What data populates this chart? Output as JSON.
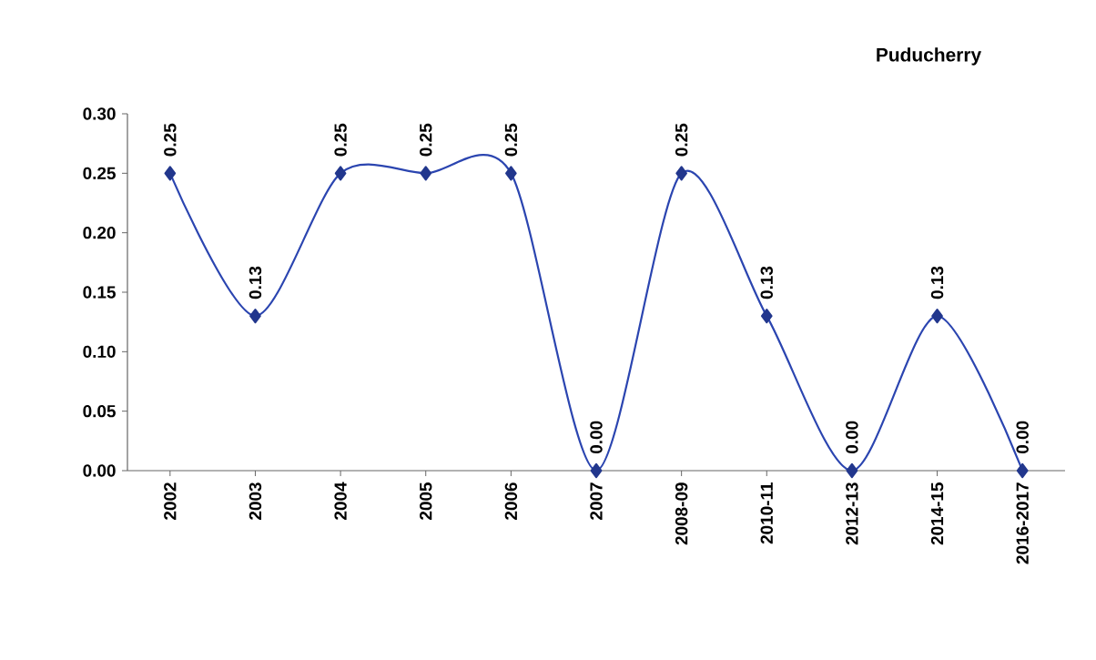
{
  "chart_data": {
    "type": "line",
    "title": "Puducherry",
    "categories": [
      "2002",
      "2003",
      "2004",
      "2005",
      "2006",
      "2007",
      "2008-09",
      "2010-11",
      "2012-13",
      "2014-15",
      "2016-2017"
    ],
    "series": [
      {
        "color": "#2b45b0",
        "values": [
          0.25,
          0.13,
          0.25,
          0.25,
          0.25,
          0.0,
          0.25,
          0.13,
          0.0,
          0.13,
          0.0
        ],
        "value_labels": [
          "0.25",
          "0.13",
          "0.25",
          "0.25",
          "0.25",
          "0.00",
          "0.25",
          "0.13",
          "0.00",
          "0.13",
          "0.00"
        ]
      }
    ],
    "ylim": [
      0,
      0.3
    ],
    "yticks": [
      {
        "value": 0,
        "label": "0.00"
      },
      {
        "value": 0.05,
        "label": "0.05"
      },
      {
        "value": 0.1,
        "label": "0.10"
      },
      {
        "value": 0.15,
        "label": "0.15"
      },
      {
        "value": 0.2,
        "label": "0.20"
      },
      {
        "value": 0.25,
        "label": "0.25"
      },
      {
        "value": 0.3,
        "label": "0.30"
      }
    ],
    "grid": false,
    "marker": "diamond",
    "line_style": "solid"
  }
}
